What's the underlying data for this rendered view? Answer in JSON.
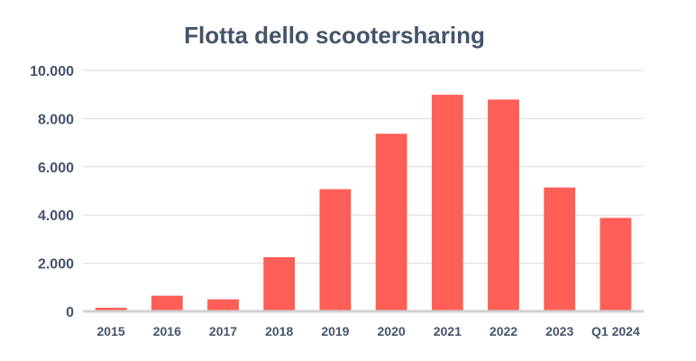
{
  "colors": {
    "bar": "#FF5F57",
    "text": "#44546A",
    "grid": "#D9D9D9",
    "axis": "#D0D0D0"
  },
  "chart_data": {
    "type": "bar",
    "title": "Flotta dello scootersharing",
    "xlabel": "",
    "ylabel": "",
    "categories": [
      "2015",
      "2016",
      "2017",
      "2018",
      "2019",
      "2020",
      "2021",
      "2022",
      "2023",
      "Q1 2024"
    ],
    "values": [
      150,
      650,
      500,
      2250,
      5070,
      7370,
      8990,
      8790,
      5140,
      3880
    ],
    "ylim": [
      0,
      10000
    ],
    "yticks": [
      0,
      2000,
      4000,
      6000,
      8000,
      10000
    ],
    "ytick_labels": [
      "0",
      "2.000",
      "4.000",
      "6.000",
      "8.000",
      "10.000"
    ],
    "grid": true,
    "legend": "none"
  }
}
